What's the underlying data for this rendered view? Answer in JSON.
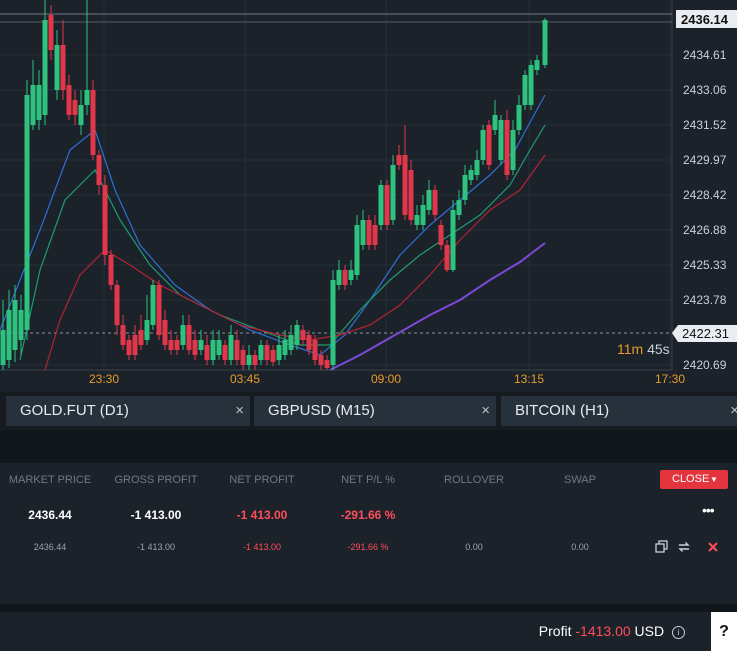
{
  "chart": {
    "price_labels": [
      "2434.61",
      "2433.06",
      "2431.52",
      "2429.97",
      "2428.42",
      "2426.88",
      "2425.33",
      "2423.78",
      "2420.69"
    ],
    "current_price": "2436.14",
    "crosshair_price": "2422.31",
    "countdown_minutes": "11m",
    "countdown_seconds": "45s",
    "time_labels": [
      "23:30",
      "03:45",
      "09:00",
      "13:15",
      "17:30"
    ],
    "colors": {
      "bull": "#2ec27e",
      "bear": "#e0374a",
      "ma_fast": "#2f6fd6",
      "ma_mid": "#1f9a74",
      "ma_slow": "#b32235",
      "ma_long": "#7a4ad8",
      "bg": "#1b222a"
    }
  },
  "tabs": [
    {
      "label": "GOLD.FUT (D1)",
      "close": "×"
    },
    {
      "label": "GBPUSD (M15)",
      "close": "×"
    },
    {
      "label": "BITCOIN (H1)",
      "close": "×"
    }
  ],
  "positions": {
    "headers": [
      "MARKET PRICE",
      "GROSS PROFIT",
      "NET PROFIT",
      "NET P/L %",
      "ROLLOVER",
      "SWAP"
    ],
    "close_label": "CLOSE",
    "summary": {
      "market_price": "2436.44",
      "gross_profit": "-1 413.00",
      "net_profit": "-1 413.00",
      "net_pl": "-291.66 %"
    },
    "row": {
      "market_price": "2436.44",
      "gross_profit": "-1 413.00",
      "net_profit": "-1 413.00",
      "net_pl": "-291.66 %",
      "rollover": "0.00",
      "swap": "0.00"
    }
  },
  "footer": {
    "profit_label": "Profit",
    "profit_value": "-1413.00",
    "currency": "USD",
    "help": "?"
  }
}
